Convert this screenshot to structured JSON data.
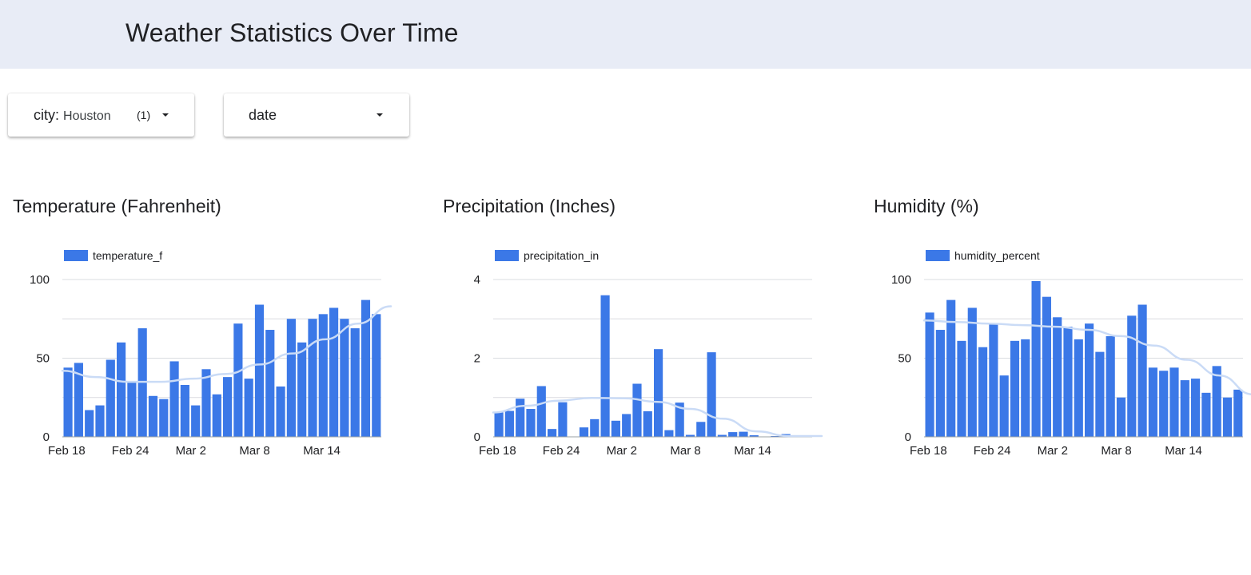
{
  "header": {
    "title": "Weather Statistics Over Time"
  },
  "filters": {
    "city": {
      "label": "city",
      "value": "Houston",
      "count": "(1)"
    },
    "date": {
      "label": "date"
    }
  },
  "colors": {
    "bar": "#3b78e7",
    "trend": "#cadbf6",
    "grid": "#dadce0",
    "axis": "#9aa0a6",
    "header_bg": "#e8ecf6"
  },
  "icons": {
    "dropdown": "caret-down-icon"
  },
  "charts": [
    {
      "title": "Temperature (Fahrenheit)",
      "chart_data": {
        "type": "bar",
        "title": "Temperature (Fahrenheit)",
        "legend": "temperature_f",
        "legend_position": "top-left",
        "xlabel": "",
        "ylabel": "",
        "ylim": [
          0,
          100
        ],
        "y_ticks": [
          0,
          50,
          100
        ],
        "x_tick_labels": [
          {
            "label": "Feb 18",
            "index": 0
          },
          {
            "label": "Feb 24",
            "index": 6
          },
          {
            "label": "Mar 2",
            "index": 12
          },
          {
            "label": "Mar 8",
            "index": 18
          },
          {
            "label": "Mar 14",
            "index": 24
          }
        ],
        "values": [
          44,
          47,
          17,
          20,
          49,
          60,
          35,
          69,
          26,
          24,
          48,
          33,
          20,
          43,
          27,
          38,
          72,
          37,
          84,
          68,
          32,
          75,
          60,
          75,
          78,
          82,
          75,
          69,
          87,
          78
        ],
        "trendline": [
          42,
          38,
          35,
          35,
          37,
          40,
          46,
          53,
          62,
          72,
          83
        ],
        "grid": true
      }
    },
    {
      "title": "Precipitation (Inches)",
      "chart_data": {
        "type": "bar",
        "title": "Precipitation (Inches)",
        "legend": "precipitation_in",
        "legend_position": "top-left",
        "xlabel": "",
        "ylabel": "",
        "ylim": [
          0,
          4
        ],
        "y_ticks": [
          0,
          2,
          4
        ],
        "x_tick_labels": [
          {
            "label": "Feb 18",
            "index": 0
          },
          {
            "label": "Feb 24",
            "index": 6
          },
          {
            "label": "Mar 2",
            "index": 12
          },
          {
            "label": "Mar 8",
            "index": 18
          },
          {
            "label": "Mar 14",
            "index": 24
          }
        ],
        "values": [
          0.62,
          0.66,
          0.97,
          0.71,
          1.29,
          0.2,
          0.88,
          0,
          0.24,
          0.45,
          3.6,
          0.41,
          0.58,
          1.35,
          0.65,
          2.23,
          0.17,
          0.87,
          0.05,
          0.38,
          2.15,
          0.05,
          0.12,
          0.13,
          0.04,
          0.01,
          0.02,
          0.07,
          0.03,
          0
        ],
        "trendline": [
          0.62,
          0.79,
          0.92,
          0.99,
          0.98,
          0.89,
          0.71,
          0.46,
          0.14,
          0.02,
          0.02
        ],
        "grid": true
      }
    },
    {
      "title": "Humidity (%)",
      "chart_data": {
        "type": "bar",
        "title": "Humidity (%)",
        "legend": "humidity_percent",
        "legend_position": "top-left",
        "xlabel": "",
        "ylabel": "",
        "ylim": [
          0,
          100
        ],
        "y_ticks": [
          0,
          50,
          100
        ],
        "x_tick_labels": [
          {
            "label": "Feb 18",
            "index": 0
          },
          {
            "label": "Feb 24",
            "index": 6
          },
          {
            "label": "Mar 2",
            "index": 12
          },
          {
            "label": "Mar 8",
            "index": 18
          },
          {
            "label": "Mar 14",
            "index": 24
          }
        ],
        "values": [
          79,
          68,
          87,
          61,
          82,
          57,
          72,
          39,
          61,
          62,
          99,
          89,
          76,
          70,
          62,
          72,
          54,
          64,
          25,
          77,
          84,
          44,
          42,
          44,
          36,
          37,
          28,
          45,
          25,
          30
        ],
        "trendline": [
          74,
          73,
          72,
          71,
          70,
          68,
          64,
          58,
          49,
          39,
          27
        ],
        "grid": true
      }
    }
  ]
}
